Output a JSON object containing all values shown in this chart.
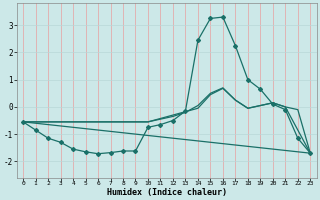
{
  "xlabel": "Humidex (Indice chaleur)",
  "bg_color": "#cce8e8",
  "grid_color_major": "#e8b0b0",
  "grid_color_minor": "#d8e8e8",
  "line_color": "#1a7068",
  "x_ticks": [
    0,
    1,
    2,
    3,
    4,
    5,
    6,
    7,
    8,
    9,
    10,
    11,
    12,
    13,
    14,
    15,
    16,
    17,
    18,
    19,
    20,
    21,
    22,
    23
  ],
  "y_ticks": [
    -2,
    -1,
    0,
    1,
    2,
    3
  ],
  "xlim": [
    -0.5,
    23.5
  ],
  "ylim": [
    -2.6,
    3.8
  ],
  "line1_x": [
    0,
    1,
    2,
    3,
    4,
    5,
    6,
    7,
    8,
    9,
    10,
    11,
    12,
    13,
    14,
    15,
    16,
    17,
    18,
    19,
    20,
    21,
    22,
    23
  ],
  "line1_y": [
    -0.55,
    -0.85,
    -1.15,
    -1.3,
    -1.55,
    -1.65,
    -1.72,
    -1.68,
    -1.62,
    -1.62,
    -0.75,
    -0.65,
    -0.5,
    -0.15,
    2.45,
    3.25,
    3.3,
    2.25,
    1.0,
    0.65,
    0.1,
    -0.1,
    -1.15,
    -1.7
  ],
  "line2_x": [
    0,
    23
  ],
  "line2_y": [
    -0.55,
    -1.7
  ],
  "line3_x": [
    0,
    10,
    11,
    12,
    13,
    14,
    15,
    16,
    17,
    18,
    19,
    20,
    21,
    22,
    23
  ],
  "line3_y": [
    -0.55,
    -0.55,
    -0.45,
    -0.35,
    -0.2,
    0.05,
    0.5,
    0.7,
    0.25,
    -0.05,
    0.05,
    0.15,
    0.0,
    -0.1,
    -1.7
  ],
  "line4_x": [
    0,
    10,
    14,
    15,
    16,
    17,
    18,
    19,
    20,
    21,
    23
  ],
  "line4_y": [
    -0.55,
    -0.55,
    -0.05,
    0.45,
    0.68,
    0.25,
    -0.05,
    0.05,
    0.15,
    0.0,
    -1.7
  ]
}
